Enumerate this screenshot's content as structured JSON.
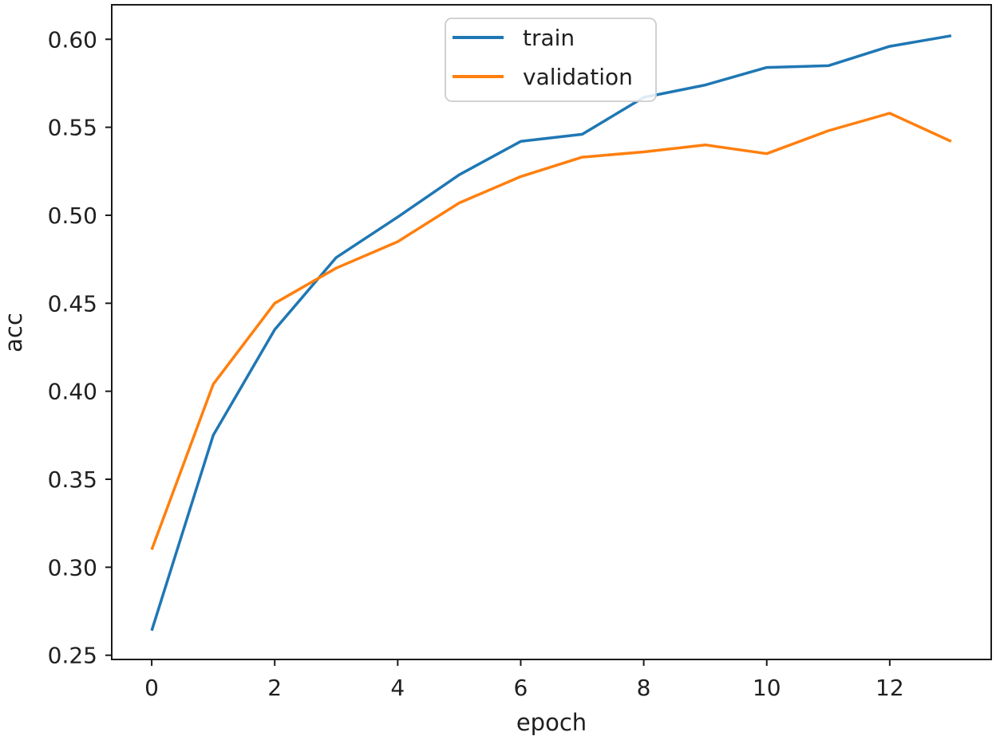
{
  "chart_data": {
    "type": "line",
    "title": "",
    "xlabel": "epoch",
    "ylabel": "acc",
    "x": [
      0,
      1,
      2,
      3,
      4,
      5,
      6,
      7,
      8,
      9,
      10,
      11,
      12,
      13
    ],
    "series": [
      {
        "name": "train",
        "color": "#1f77b4",
        "values": [
          0.264,
          0.375,
          0.435,
          0.476,
          0.499,
          0.523,
          0.542,
          0.546,
          0.567,
          0.574,
          0.584,
          0.585,
          0.596,
          0.602
        ]
      },
      {
        "name": "validation",
        "color": "#ff7f0e",
        "values": [
          0.31,
          0.404,
          0.45,
          0.47,
          0.485,
          0.507,
          0.522,
          0.533,
          0.536,
          0.54,
          0.535,
          0.548,
          0.558,
          0.542
        ]
      }
    ],
    "xlim": [
      -0.65,
      13.65
    ],
    "ylim": [
      0.2476,
      0.6196
    ],
    "xticks": {
      "values": [
        0,
        2,
        4,
        6,
        8,
        10,
        12
      ],
      "labels": [
        "0",
        "2",
        "4",
        "6",
        "8",
        "10",
        "12"
      ]
    },
    "yticks": {
      "values": [
        0.25,
        0.3,
        0.35,
        0.4,
        0.45,
        0.5,
        0.55,
        0.6
      ],
      "labels": [
        "0.25",
        "0.30",
        "0.35",
        "0.40",
        "0.45",
        "0.50",
        "0.55",
        "0.60"
      ]
    },
    "grid": false,
    "legend": {
      "position": "upper-center",
      "entries": [
        "train",
        "validation"
      ]
    },
    "colors": {
      "background": "#ffffff",
      "spine": "#1a1a1a",
      "text": "#1f1f1f",
      "legend_border": "#cccccc",
      "legend_background": "#ffffff"
    }
  }
}
